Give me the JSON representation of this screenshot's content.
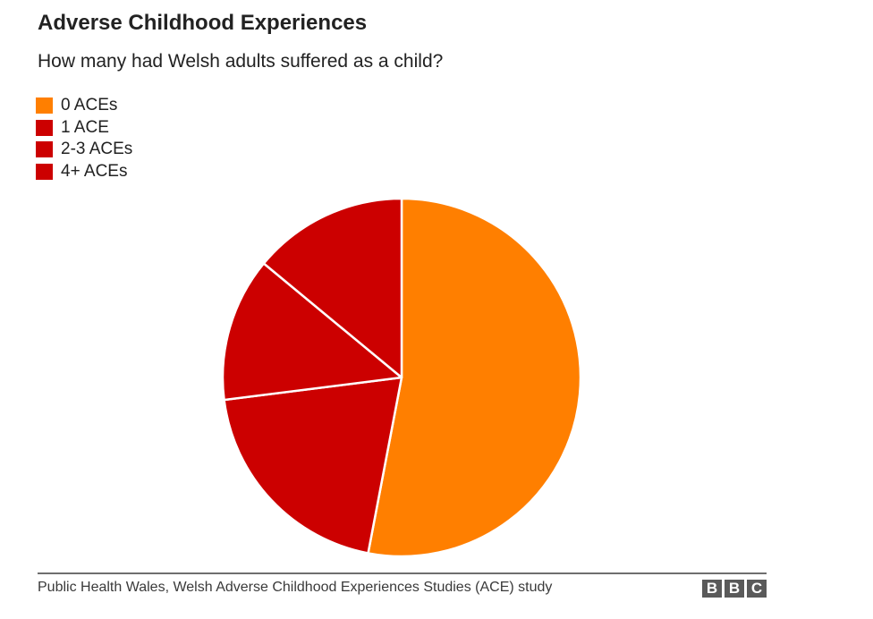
{
  "header": {
    "title": "Adverse Childhood Experiences",
    "subtitle": "How many had Welsh adults suffered as a child?"
  },
  "legend": [
    {
      "label": "0 ACEs",
      "color": "#FF7F00"
    },
    {
      "label": "1 ACE",
      "color": "#CC0000"
    },
    {
      "label": "2-3 ACEs",
      "color": "#CC0000"
    },
    {
      "label": "4+ ACEs",
      "color": "#CC0000"
    }
  ],
  "footer": {
    "source": "Public Health Wales, Welsh Adverse Childhood Experiences Studies (ACE) study",
    "logo": [
      "B",
      "B",
      "C"
    ]
  },
  "chart_data": {
    "type": "pie",
    "title": "Adverse Childhood Experiences",
    "subtitle": "How many had Welsh adults suffered as a child?",
    "categories": [
      "0 ACEs",
      "1 ACE",
      "2-3 ACEs",
      "4+ ACEs"
    ],
    "values": [
      53,
      20,
      13,
      14
    ],
    "unit": "%",
    "colors": [
      "#FF7F00",
      "#CC0000",
      "#CC0000",
      "#CC0000"
    ],
    "start_angle": "12 o'clock",
    "direction": "clockwise",
    "legend_position": "top-left",
    "source": "Public Health Wales, Welsh Adverse Childhood Experiences Studies (ACE) study"
  }
}
